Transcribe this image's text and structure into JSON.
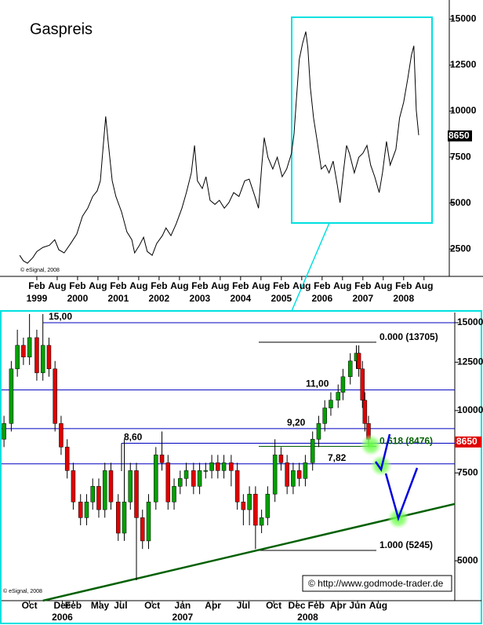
{
  "chart_data": [
    {
      "type": "line",
      "title": "Gaspreis",
      "note": "© eSignal, 2008",
      "color": "#000000",
      "x": [
        1998.66,
        1998.75,
        1998.85,
        1998.98,
        1999.08,
        1999.23,
        1999.39,
        1999.52,
        1999.62,
        1999.75,
        1999.91,
        2000.06,
        2000.2,
        2000.33,
        2000.45,
        2000.56,
        2000.64,
        2000.71,
        2000.77,
        2000.83,
        2000.93,
        2001.02,
        2001.16,
        2001.29,
        2001.41,
        2001.48,
        2001.6,
        2001.7,
        2001.79,
        2001.91,
        2002.02,
        2002.16,
        2002.25,
        2002.37,
        2002.5,
        2002.64,
        2002.75,
        2002.87,
        2002.95,
        2003.02,
        2003.14,
        2003.23,
        2003.33,
        2003.45,
        2003.56,
        2003.68,
        2003.79,
        2003.91,
        2004.04,
        2004.18,
        2004.29,
        2004.43,
        2004.52,
        2004.6,
        2004.66,
        2004.75,
        2004.87,
        2004.98,
        2005.1,
        2005.21,
        2005.33,
        2005.39,
        2005.45,
        2005.52,
        2005.6,
        2005.68,
        2005.73,
        2005.79,
        2005.87,
        2005.96,
        2006.06,
        2006.16,
        2006.25,
        2006.35,
        2006.45,
        2006.52,
        2006.6,
        2006.68,
        2006.75,
        2006.87,
        2006.98,
        2007.08,
        2007.18,
        2007.27,
        2007.37,
        2007.48,
        2007.56,
        2007.66,
        2007.75,
        2007.89,
        2007.98,
        2008.08,
        2008.18,
        2008.27,
        2008.33,
        2008.39,
        2008.45
      ],
      "values": [
        2160,
        1860,
        1730,
        2030,
        2370,
        2590,
        2710,
        3010,
        2460,
        2290,
        2800,
        3310,
        4290,
        4720,
        5360,
        5660,
        6210,
        8130,
        9710,
        8350,
        6210,
        5360,
        4510,
        3440,
        3010,
        2290,
        2710,
        3140,
        2370,
        2160,
        2800,
        3230,
        3650,
        3230,
        3870,
        4720,
        5570,
        6640,
        8130,
        6210,
        5790,
        6430,
        5150,
        4930,
        5150,
        4720,
        5020,
        5570,
        5360,
        6210,
        6300,
        5360,
        4720,
        7070,
        8560,
        7490,
        6850,
        7490,
        6430,
        6850,
        7710,
        8770,
        10690,
        12820,
        13680,
        14320,
        13460,
        11330,
        9630,
        8350,
        6850,
        7070,
        6640,
        7280,
        6000,
        5020,
        6640,
        8130,
        7710,
        6640,
        7490,
        7710,
        8130,
        7070,
        6430,
        5570,
        6640,
        8350,
        7070,
        7920,
        9630,
        10480,
        11760,
        13040,
        13550,
        10050,
        8690
      ],
      "xlim": [
        1998.6,
        2009.2
      ],
      "ylim": [
        1100,
        15700
      ],
      "xticks": [
        {
          "value": 1999.08,
          "label": "Feb"
        },
        {
          "value": 1999.58,
          "label": "Aug"
        },
        {
          "value": 2000.08,
          "label": "Feb"
        },
        {
          "value": 2000.58,
          "label": "Aug"
        },
        {
          "value": 2001.08,
          "label": "Feb"
        },
        {
          "value": 2001.58,
          "label": "Aug"
        },
        {
          "value": 2002.08,
          "label": "Feb"
        },
        {
          "value": 2002.58,
          "label": "Aug"
        },
        {
          "value": 2003.08,
          "label": "Feb"
        },
        {
          "value": 2003.58,
          "label": "Aug"
        },
        {
          "value": 2004.08,
          "label": "Feb"
        },
        {
          "value": 2004.58,
          "label": "Aug"
        },
        {
          "value": 2005.08,
          "label": "Feb"
        },
        {
          "value": 2005.58,
          "label": "Aug"
        },
        {
          "value": 2006.08,
          "label": "Feb"
        },
        {
          "value": 2006.58,
          "label": "Aug"
        },
        {
          "value": 2007.08,
          "label": "Feb"
        },
        {
          "value": 2007.58,
          "label": "Aug"
        },
        {
          "value": 2008.08,
          "label": "Feb"
        },
        {
          "value": 2008.58,
          "label": "Aug"
        }
      ],
      "year_labels": [
        {
          "value": 1999.08,
          "label": "1999"
        },
        {
          "value": 2000.08,
          "label": "2000"
        },
        {
          "value": 2001.08,
          "label": "2001"
        },
        {
          "value": 2002.08,
          "label": "2002"
        },
        {
          "value": 2003.08,
          "label": "2003"
        },
        {
          "value": 2004.08,
          "label": "2004"
        },
        {
          "value": 2005.08,
          "label": "2005"
        },
        {
          "value": 2006.08,
          "label": "2006"
        },
        {
          "value": 2007.08,
          "label": "2007"
        },
        {
          "value": 2008.08,
          "label": "2008"
        }
      ],
      "yticks": [
        2500,
        5000,
        7500,
        10000,
        12500,
        15000
      ],
      "last_value": 8650
    },
    {
      "type": "candlestick",
      "note": "© eSignal, 2008",
      "credit": "© http://www.godmode-trader.de",
      "up_color": "#00a000",
      "down_color": "#e00000",
      "log_scale": true,
      "x": [
        2005.53,
        2005.59,
        2005.64,
        2005.69,
        2005.74,
        2005.8,
        2005.85,
        2005.9,
        2005.95,
        2006.0,
        2006.05,
        2006.1,
        2006.16,
        2006.21,
        2006.26,
        2006.31,
        2006.36,
        2006.41,
        2006.47,
        2006.52,
        2006.57,
        2006.62,
        2006.67,
        2006.72,
        2006.78,
        2006.83,
        2006.88,
        2006.93,
        2006.98,
        2007.03,
        2007.09,
        2007.14,
        2007.19,
        2007.24,
        2007.29,
        2007.34,
        2007.4,
        2007.45,
        2007.5,
        2007.55,
        2007.6,
        2007.65,
        2007.7,
        2007.76,
        2007.81,
        2007.86,
        2007.91,
        2007.96,
        2008.01,
        2008.07,
        2008.12,
        2008.17,
        2008.22,
        2008.28,
        2008.32,
        2008.38,
        2008.43,
        2008.45,
        2008.48,
        2008.5,
        2008.53
      ],
      "open": [
        8760,
        9420,
        12120,
        13510,
        12800,
        14000,
        11900,
        13510,
        12120,
        9420,
        8450,
        7580,
        6560,
        6100,
        6560,
        7050,
        6330,
        7580,
        6560,
        5680,
        6560,
        7580,
        6100,
        5480,
        6560,
        8150,
        7860,
        6560,
        7050,
        7310,
        7580,
        7050,
        7580,
        7580,
        7860,
        7580,
        7860,
        7580,
        6560,
        6330,
        6800,
        5890,
        6100,
        6800,
        8150,
        7860,
        7050,
        7580,
        7310,
        7860,
        8760,
        9420,
        10120,
        10490,
        10880,
        11690,
        12570,
        13030,
        12120,
        10490,
        9420
      ],
      "high": [
        9760,
        12570,
        14520,
        14000,
        15610,
        14520,
        15610,
        14000,
        12570,
        9760,
        8760,
        7860,
        6800,
        6800,
        7310,
        7310,
        7860,
        7860,
        6800,
        8760,
        7860,
        7860,
        6330,
        6800,
        8450,
        9080,
        8150,
        7310,
        7580,
        7860,
        7860,
        7860,
        7860,
        8150,
        8150,
        8150,
        8150,
        7860,
        6800,
        7050,
        7050,
        6330,
        7050,
        8760,
        8450,
        8150,
        7860,
        7860,
        8150,
        9080,
        9760,
        10490,
        10880,
        11280,
        12120,
        13030,
        13510,
        13510,
        12570,
        10880,
        9760
      ],
      "low": [
        8450,
        9080,
        11690,
        12340,
        12340,
        11480,
        11480,
        11690,
        9080,
        8150,
        7310,
        6330,
        5890,
        5890,
        6330,
        6100,
        6100,
        6330,
        5480,
        5480,
        6330,
        4570,
        5280,
        5280,
        6330,
        7580,
        6330,
        6330,
        6800,
        7050,
        6800,
        6800,
        7310,
        7310,
        7310,
        7310,
        7050,
        6330,
        5890,
        5890,
        5280,
        5680,
        5890,
        6560,
        7580,
        6800,
        6800,
        7050,
        7050,
        7580,
        8450,
        9080,
        9760,
        10120,
        10490,
        11280,
        12120,
        11690,
        10120,
        9080,
        8450
      ],
      "close": [
        9420,
        12120,
        13510,
        12800,
        14000,
        11900,
        13510,
        12120,
        9420,
        8450,
        7580,
        6560,
        6100,
        6560,
        7050,
        6330,
        7580,
        6560,
        5680,
        6560,
        7580,
        6100,
        5480,
        6560,
        8150,
        7860,
        6560,
        7050,
        7310,
        7580,
        7050,
        7580,
        7580,
        7860,
        7580,
        7860,
        7580,
        6560,
        6330,
        6800,
        5890,
        6100,
        6800,
        8150,
        7860,
        7050,
        7580,
        7310,
        7860,
        8760,
        9420,
        10120,
        10490,
        10880,
        11690,
        12570,
        13030,
        12120,
        10490,
        9420,
        8760
      ],
      "xlim": [
        2005.51,
        2009.24
      ],
      "ylim": [
        4160,
        15720
      ],
      "xticks": [
        {
          "value": 2005.74,
          "label": "Oct"
        },
        {
          "value": 2006.01,
          "label": "Dec"
        },
        {
          "value": 2006.1,
          "label": "Feb"
        },
        {
          "value": 2006.32,
          "label": "May"
        },
        {
          "value": 2006.49,
          "label": "Jul"
        },
        {
          "value": 2006.75,
          "label": "Oct"
        },
        {
          "value": 2007.0,
          "label": "Jan"
        },
        {
          "value": 2007.25,
          "label": "Apr"
        },
        {
          "value": 2007.5,
          "label": "Jul"
        },
        {
          "value": 2007.75,
          "label": "Oct"
        },
        {
          "value": 2007.94,
          "label": "Dec"
        },
        {
          "value": 2008.1,
          "label": "Feb"
        },
        {
          "value": 2008.28,
          "label": "Apr"
        },
        {
          "value": 2008.44,
          "label": "Jun"
        },
        {
          "value": 2008.61,
          "label": "Aug"
        }
      ],
      "year_labels": [
        {
          "value": 2006.01,
          "label": "2006"
        },
        {
          "value": 2007.0,
          "label": "2007"
        },
        {
          "value": 2008.03,
          "label": "2008"
        }
      ],
      "yticks": [
        5000,
        7500,
        10000,
        12500,
        15000
      ],
      "last_value": 8650,
      "levels": [
        {
          "value": 15000,
          "label": "15,00"
        },
        {
          "value": 11000,
          "label": "11,00"
        },
        {
          "value": 9200,
          "label": "9,20"
        },
        {
          "value": 8600,
          "label": "8,60"
        },
        {
          "value": 7820,
          "label": "7,82"
        }
      ],
      "fib_levels": [
        {
          "value": 13705,
          "label": "0.000 (13705)"
        },
        {
          "value": 8476,
          "label": "0.618 (8476)"
        },
        {
          "value": 5245,
          "label": "1.000 (5245)"
        }
      ],
      "trendline": {
        "x": [
          2005.85,
          2009.24
        ],
        "values": [
          4160,
          6500
        ]
      }
    }
  ]
}
